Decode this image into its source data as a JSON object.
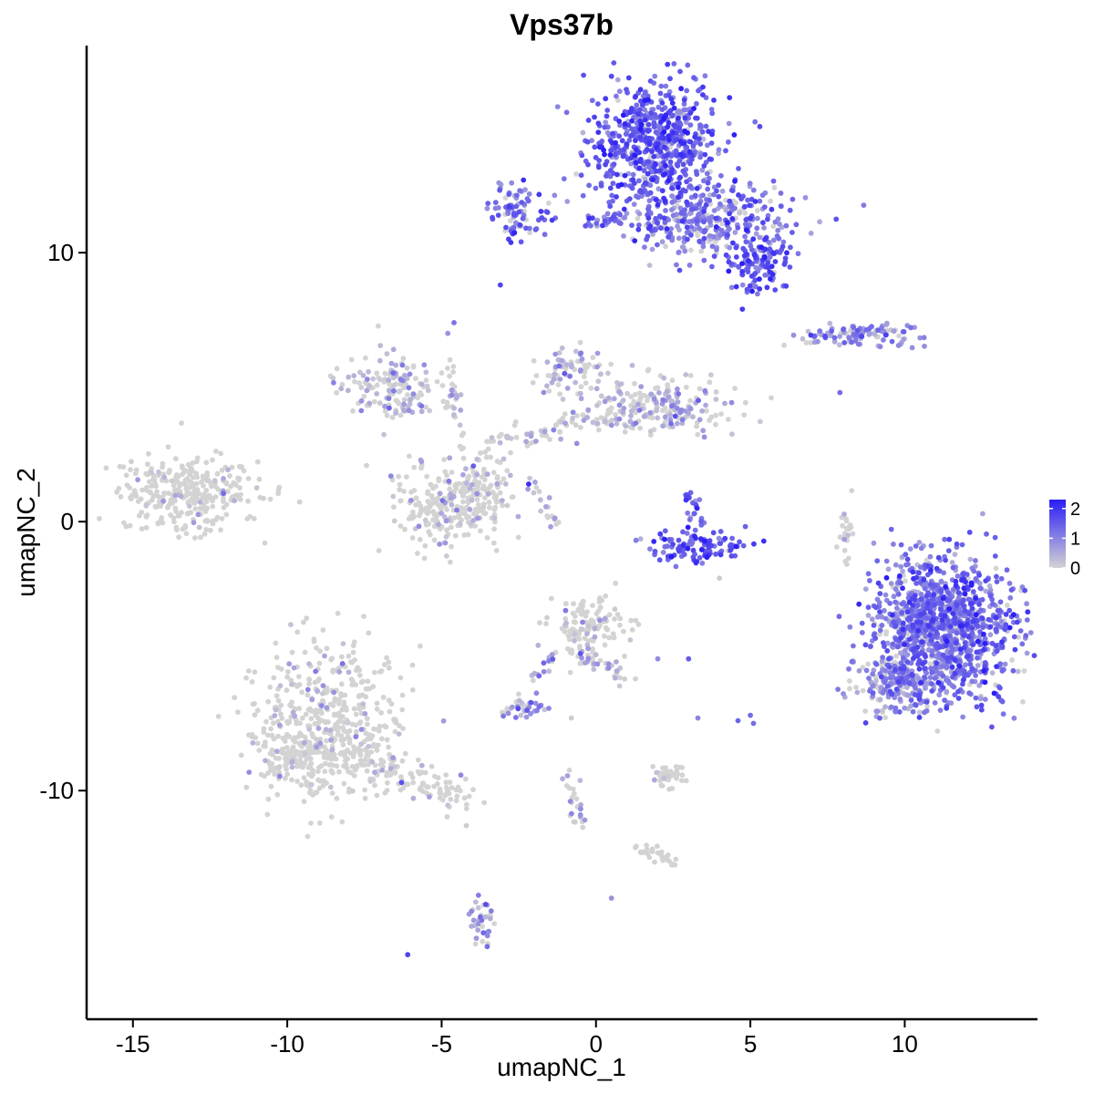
{
  "chart_data": {
    "type": "scatter",
    "title": "Vps37b",
    "xlabel": "umapNC_1",
    "ylabel": "umapNC_2",
    "xlim": [
      -16.5,
      14.3
    ],
    "ylim": [
      -18.5,
      17.7
    ],
    "x_ticks": [
      -15,
      -10,
      -5,
      0,
      5,
      10
    ],
    "x_tick_labels": [
      "-15",
      "-10",
      "-5",
      "0",
      "5",
      "10"
    ],
    "y_ticks": [
      -10,
      0,
      10
    ],
    "y_tick_labels": [
      "-10",
      "0",
      "10"
    ],
    "grid": false,
    "legend": {
      "position": "right",
      "labels": [
        "2",
        "1",
        "0"
      ],
      "values": [
        2,
        1,
        0
      ],
      "range": [
        0,
        2.3
      ],
      "color_low": "#d3d3d3",
      "color_high": "#2b1df5"
    },
    "clusters": [
      {
        "id": "left-blob",
        "center": [
          -13.2,
          1.0
        ],
        "spread": [
          1.1,
          0.7
        ],
        "n": 320,
        "expr_mean": 0.05
      },
      {
        "id": "top-mass",
        "center": [
          1.9,
          14.0
        ],
        "spread": [
          1.0,
          1.2
        ],
        "n": 650,
        "expr_mean": 1.4
      },
      {
        "id": "top-ext",
        "center": [
          3.7,
          11.2
        ],
        "spread": [
          1.3,
          0.7
        ],
        "n": 350,
        "expr_mean": 1.1
      },
      {
        "id": "top-right-tail",
        "center": [
          5.3,
          9.6
        ],
        "spread": [
          0.5,
          0.5
        ],
        "n": 120,
        "expr_mean": 1.5
      },
      {
        "id": "top-left-arm",
        "center": [
          -2.5,
          11.5
        ],
        "spread": [
          0.5,
          0.5
        ],
        "n": 90,
        "expr_mean": 1.3
      },
      {
        "id": "central-left-arm",
        "center": [
          -6.6,
          5.0
        ],
        "spread": [
          0.8,
          0.6
        ],
        "n": 150,
        "expr_mean": 0.3
      },
      {
        "id": "central-right-arm",
        "center": [
          2.1,
          4.3
        ],
        "spread": [
          1.2,
          0.5
        ],
        "n": 210,
        "expr_mean": 0.35
      },
      {
        "id": "central-left-lobe",
        "center": [
          -5.1,
          0.5
        ],
        "spread": [
          0.8,
          0.8
        ],
        "n": 170,
        "expr_mean": 0.25
      },
      {
        "id": "central-right-lobe",
        "center": [
          -3.9,
          1.0
        ],
        "spread": [
          0.6,
          0.7
        ],
        "n": 150,
        "expr_mean": 0.25
      },
      {
        "id": "central-top-lobe",
        "center": [
          -0.8,
          5.6
        ],
        "spread": [
          0.5,
          0.5
        ],
        "n": 70,
        "expr_mean": 0.4
      },
      {
        "id": "arc-cluster",
        "center": [
          3.3,
          -0.9
        ],
        "spread": [
          0.8,
          0.3
        ],
        "n": 110,
        "expr_mean": 1.6
      },
      {
        "id": "right-strip",
        "center": [
          8.5,
          6.9
        ],
        "spread": [
          1.1,
          0.2
        ],
        "n": 110,
        "expr_mean": 0.9
      },
      {
        "id": "right-big",
        "center": [
          11.2,
          -4.0
        ],
        "spread": [
          1.1,
          1.3
        ],
        "n": 1150,
        "expr_mean": 1.2
      },
      {
        "id": "right-big-lower",
        "center": [
          9.8,
          -6.0
        ],
        "spread": [
          0.7,
          0.6
        ],
        "n": 200,
        "expr_mean": 0.9
      },
      {
        "id": "lower-left-body",
        "center": [
          -8.7,
          -7.5
        ],
        "spread": [
          1.2,
          1.4
        ],
        "n": 480,
        "expr_mean": 0.15
      },
      {
        "id": "lower-left-head",
        "center": [
          -9.6,
          -8.7
        ],
        "spread": [
          0.6,
          0.5
        ],
        "n": 100,
        "expr_mean": 0.2
      },
      {
        "id": "lower-center",
        "center": [
          -0.2,
          -3.8
        ],
        "spread": [
          0.6,
          0.6
        ],
        "n": 130,
        "expr_mean": 0.2
      },
      {
        "id": "lower-center-small",
        "center": [
          -2.4,
          -6.9
        ],
        "spread": [
          0.3,
          0.2
        ],
        "n": 35,
        "expr_mean": 0.7
      },
      {
        "id": "lower-small-a",
        "center": [
          2.3,
          -9.5
        ],
        "spread": [
          0.3,
          0.2
        ],
        "n": 40,
        "expr_mean": 0.15
      },
      {
        "id": "lower-small-b",
        "center": [
          -3.6,
          -14.8
        ],
        "spread": [
          0.2,
          0.5
        ],
        "n": 35,
        "expr_mean": 0.7
      },
      {
        "id": "mid-right-cluster",
        "center": [
          8.1,
          -0.5
        ],
        "spread": [
          0.15,
          0.5
        ],
        "n": 25,
        "expr_mean": 0.2
      }
    ],
    "trails": [
      {
        "id": "lower-left-tail",
        "from": [
          -7.5,
          -8.8
        ],
        "to": [
          -4.2,
          -10.4
        ],
        "n": 110,
        "width": 0.35,
        "expr_mean": 0.15
      },
      {
        "id": "stem-up",
        "from": [
          -4.3,
          2.5
        ],
        "to": [
          -4.8,
          6.0
        ],
        "n": 30,
        "width": 0.15,
        "expr_mean": 0.3
      },
      {
        "id": "stem-right",
        "from": [
          -3.8,
          2.8
        ],
        "to": [
          0.6,
          4.0
        ],
        "n": 60,
        "width": 0.25,
        "expr_mean": 0.35
      },
      {
        "id": "streak",
        "from": [
          -2.2,
          1.7
        ],
        "to": [
          -1.3,
          -0.1
        ],
        "n": 20,
        "width": 0.1,
        "expr_mean": 0.4
      },
      {
        "id": "upper-bridge",
        "from": [
          -0.3,
          11.1
        ],
        "to": [
          0.9,
          11.3
        ],
        "n": 30,
        "width": 0.12,
        "expr_mean": 1.2
      },
      {
        "id": "arc-stem",
        "from": [
          2.9,
          1.1
        ],
        "to": [
          3.5,
          -0.2
        ],
        "n": 25,
        "width": 0.15,
        "expr_mean": 1.4
      },
      {
        "id": "lower-center-tail",
        "from": [
          -0.6,
          -5.0
        ],
        "to": [
          0.9,
          -5.6
        ],
        "n": 35,
        "width": 0.2,
        "expr_mean": 0.35
      },
      {
        "id": "lower-stream",
        "from": [
          -0.9,
          -9.2
        ],
        "to": [
          -0.4,
          -11.5
        ],
        "n": 25,
        "width": 0.12,
        "expr_mean": 0.3
      },
      {
        "id": "lower-stream-2",
        "from": [
          1.4,
          -12.2
        ],
        "to": [
          2.6,
          -12.7
        ],
        "n": 30,
        "width": 0.12,
        "expr_mean": 0.2
      },
      {
        "id": "lower-left-spur",
        "from": [
          -2.0,
          -6.0
        ],
        "to": [
          -1.4,
          -5.0
        ],
        "n": 15,
        "width": 0.1,
        "expr_mean": 0.5
      }
    ],
    "singletons": [
      [
        -6.1,
        -16.1,
        1.8
      ],
      [
        -3.1,
        8.8,
        1.8
      ],
      [
        -4.6,
        7.4,
        1.2
      ],
      [
        -4.8,
        7.0,
        0.8
      ],
      [
        7.9,
        4.8,
        1.3
      ],
      [
        4.0,
        -2.1,
        0.1
      ],
      [
        -0.8,
        -7.3,
        0.1
      ],
      [
        0.5,
        -14.0,
        0.8
      ],
      [
        5.0,
        -7.2,
        1.3
      ],
      [
        5.1,
        -7.5,
        1.3
      ],
      [
        -4.2,
        -11.3,
        0.1
      ],
      [
        2.0,
        -5.1,
        0.9
      ],
      [
        3.0,
        -5.1,
        1.5
      ],
      [
        3.3,
        -7.3,
        1.0
      ],
      [
        4.6,
        -7.4,
        1.4
      ]
    ]
  }
}
